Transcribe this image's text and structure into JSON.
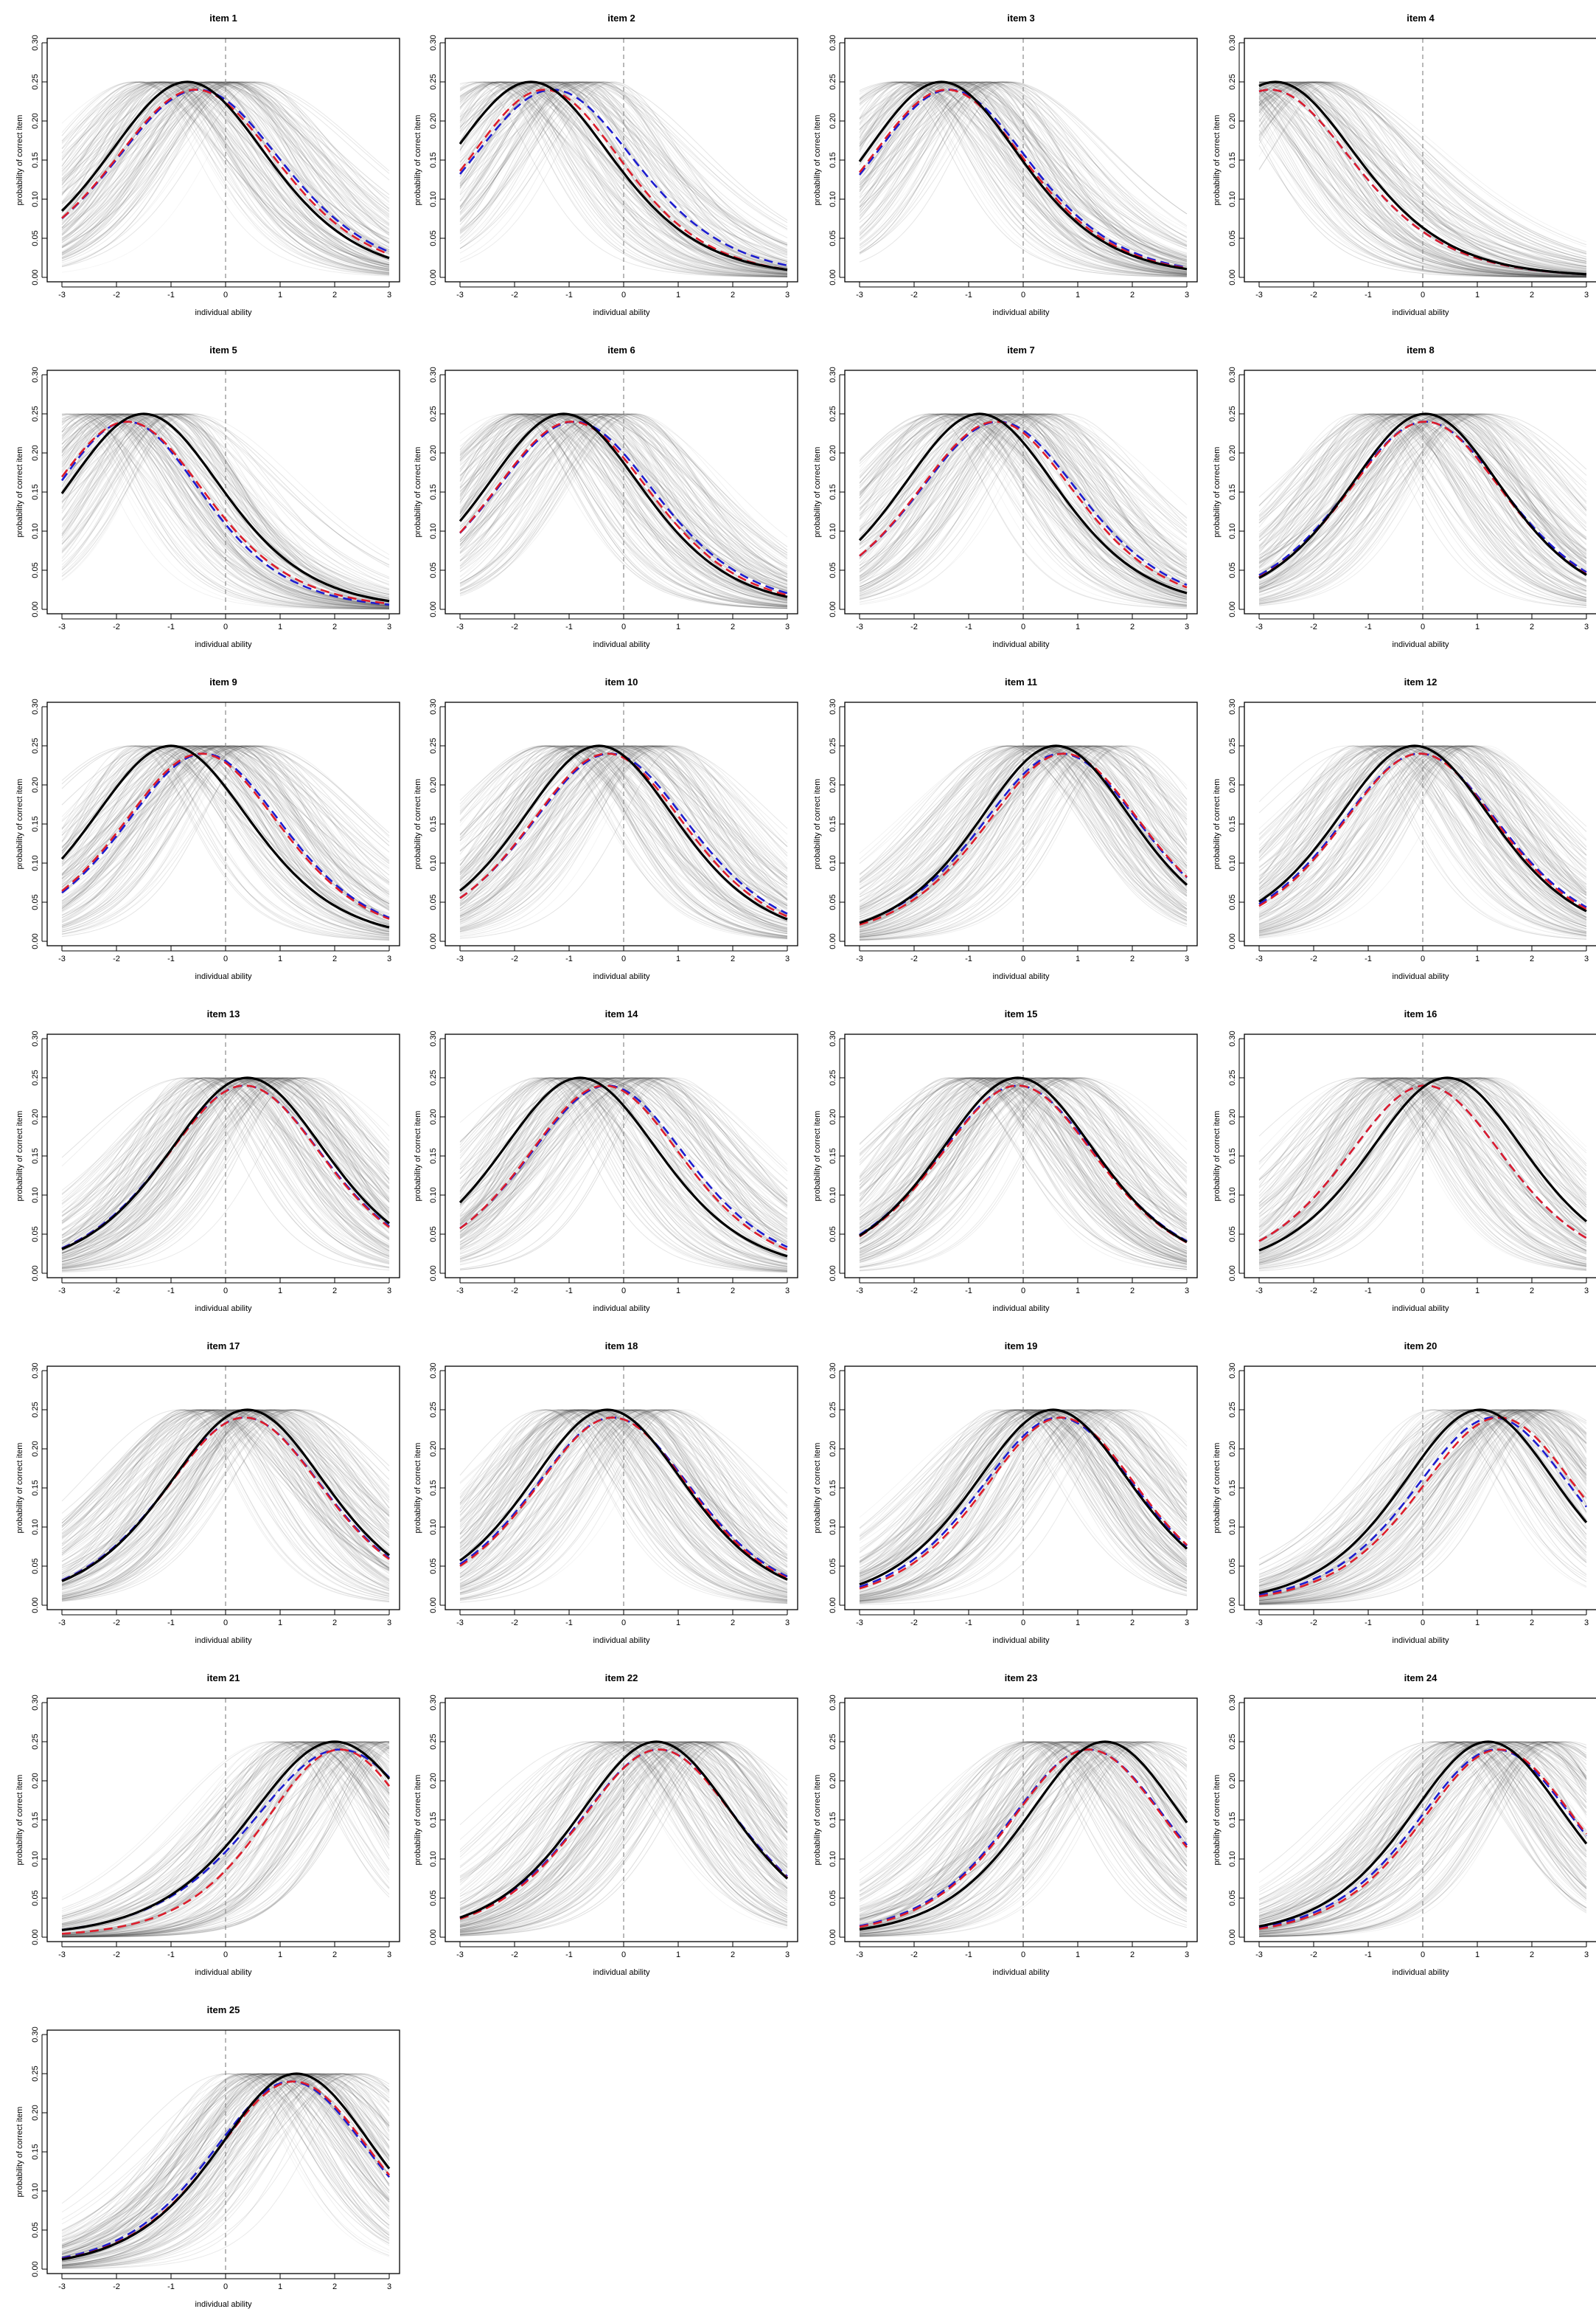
{
  "figure": {
    "xlabel": "individual ability",
    "ylabel": "probability of correct item",
    "xticks": [
      "-3",
      "-2",
      "-1",
      "0",
      "1",
      "2",
      "3"
    ],
    "yticks": [
      "0.00",
      "0.05",
      "0.10",
      "0.15",
      "0.20",
      "0.25",
      "0.30"
    ]
  },
  "chart_data": [
    {
      "type": "line",
      "title": "item 1",
      "xlabel": "individual ability",
      "ylabel": "probability of correct item",
      "xlim": [
        -3,
        3
      ],
      "ylim": [
        0,
        0.3
      ],
      "reference_line_x": 0,
      "series": [
        {
          "name": "black",
          "peak_x": -0.7,
          "value_at_x-3": 0.095,
          "value_at_x3": 0.02
        },
        {
          "name": "red",
          "peak_x": -0.55,
          "value_at_x-3": 0.08,
          "value_at_x3": 0.03
        },
        {
          "name": "blue",
          "peak_x": -0.5,
          "value_at_x-3": 0.085,
          "value_at_x3": 0.03
        }
      ]
    },
    {
      "type": "line",
      "title": "item 2",
      "xlabel": "individual ability",
      "ylabel": "probability of correct item",
      "xlim": [
        -3,
        3
      ],
      "ylim": [
        0,
        0.3
      ],
      "reference_line_x": 0,
      "series": [
        {
          "name": "black",
          "peak_x": -1.7,
          "value_at_x-3": 0.17,
          "value_at_x3": 0.01
        },
        {
          "name": "red",
          "peak_x": -1.45,
          "value_at_x-3": 0.13,
          "value_at_x3": 0.015
        },
        {
          "name": "blue",
          "peak_x": -1.3,
          "value_at_x-3": 0.14,
          "value_at_x3": 0.015
        }
      ]
    },
    {
      "type": "line",
      "title": "item 3",
      "xlabel": "individual ability",
      "ylabel": "probability of correct item",
      "xlim": [
        -3,
        3
      ],
      "ylim": [
        0,
        0.3
      ],
      "reference_line_x": 0,
      "series": [
        {
          "name": "black",
          "peak_x": -1.5,
          "value_at_x-3": 0.15,
          "value_at_x3": 0.01
        },
        {
          "name": "red",
          "peak_x": -1.4,
          "value_at_x-3": 0.14,
          "value_at_x3": 0.012
        },
        {
          "name": "blue",
          "peak_x": -1.35,
          "value_at_x-3": 0.14,
          "value_at_x3": 0.012
        }
      ]
    },
    {
      "type": "line",
      "title": "item 4",
      "xlabel": "individual ability",
      "ylabel": "probability of correct item",
      "xlim": [
        -3,
        3
      ],
      "ylim": [
        0,
        0.3
      ],
      "reference_line_x": 0,
      "series": [
        {
          "name": "black",
          "peak_x": -2.7,
          "value_at_x-3": 0.245,
          "value_at_x3": 0.004
        },
        {
          "name": "red",
          "peak_x": -2.8,
          "value_at_x-3": 0.24,
          "value_at_x3": 0.004
        },
        {
          "name": "blue",
          "peak_x": -2.8,
          "value_at_x-3": 0.235,
          "value_at_x3": 0.004
        }
      ]
    },
    {
      "type": "line",
      "title": "item 5",
      "xlabel": "individual ability",
      "ylabel": "probability of correct item",
      "xlim": [
        -3,
        3
      ],
      "ylim": [
        0,
        0.3
      ],
      "reference_line_x": 0,
      "series": [
        {
          "name": "black",
          "peak_x": -1.5,
          "value_at_x-3": 0.15,
          "value_at_x3": 0.01
        },
        {
          "name": "red",
          "peak_x": -1.8,
          "value_at_x-3": 0.17,
          "value_at_x3": 0.01
        },
        {
          "name": "blue",
          "peak_x": -1.8,
          "value_at_x-3": 0.16,
          "value_at_x3": 0.01
        }
      ]
    },
    {
      "type": "line",
      "title": "item 6",
      "xlabel": "individual ability",
      "ylabel": "probability of correct item",
      "xlim": [
        -3,
        3
      ],
      "ylim": [
        0,
        0.3
      ],
      "reference_line_x": 0,
      "series": [
        {
          "name": "black",
          "peak_x": -1.1,
          "value_at_x-3": 0.115,
          "value_at_x3": 0.015
        },
        {
          "name": "red",
          "peak_x": -0.95,
          "value_at_x-3": 0.1,
          "value_at_x3": 0.02
        },
        {
          "name": "blue",
          "peak_x": -0.9,
          "value_at_x-3": 0.105,
          "value_at_x3": 0.02
        }
      ]
    },
    {
      "type": "line",
      "title": "item 7",
      "xlabel": "individual ability",
      "ylabel": "probability of correct item",
      "xlim": [
        -3,
        3
      ],
      "ylim": [
        0,
        0.3
      ],
      "reference_line_x": 0,
      "series": [
        {
          "name": "black",
          "peak_x": -0.8,
          "value_at_x-3": 0.09,
          "value_at_x3": 0.02
        },
        {
          "name": "red",
          "peak_x": -0.5,
          "value_at_x-3": 0.07,
          "value_at_x3": 0.03
        },
        {
          "name": "blue",
          "peak_x": -0.45,
          "value_at_x-3": 0.075,
          "value_at_x3": 0.03
        }
      ]
    },
    {
      "type": "line",
      "title": "item 8",
      "xlabel": "individual ability",
      "ylabel": "probability of correct item",
      "xlim": [
        -3,
        3
      ],
      "ylim": [
        0,
        0.3
      ],
      "reference_line_x": 0,
      "series": [
        {
          "name": "black",
          "peak_x": 0.05,
          "value_at_x-3": 0.035,
          "value_at_x3": 0.05
        },
        {
          "name": "red",
          "peak_x": 0.05,
          "value_at_x-3": 0.04,
          "value_at_x3": 0.05
        },
        {
          "name": "blue",
          "peak_x": 0.05,
          "value_at_x-3": 0.045,
          "value_at_x3": 0.05
        }
      ]
    },
    {
      "type": "line",
      "title": "item 9",
      "xlabel": "individual ability",
      "ylabel": "probability of correct item",
      "xlim": [
        -3,
        3
      ],
      "ylim": [
        0,
        0.3
      ],
      "reference_line_x": 0,
      "series": [
        {
          "name": "black",
          "peak_x": -1.0,
          "value_at_x-3": 0.105,
          "value_at_x3": 0.018
        },
        {
          "name": "red",
          "peak_x": -0.45,
          "value_at_x-3": 0.06,
          "value_at_x3": 0.035
        },
        {
          "name": "blue",
          "peak_x": -0.4,
          "value_at_x-3": 0.06,
          "value_at_x3": 0.035
        }
      ]
    },
    {
      "type": "line",
      "title": "item 10",
      "xlabel": "individual ability",
      "ylabel": "probability of correct item",
      "xlim": [
        -3,
        3
      ],
      "ylim": [
        0,
        0.3
      ],
      "reference_line_x": 0,
      "series": [
        {
          "name": "black",
          "peak_x": -0.45,
          "value_at_x-3": 0.07,
          "value_at_x3": 0.025
        },
        {
          "name": "red",
          "peak_x": -0.3,
          "value_at_x-3": 0.055,
          "value_at_x3": 0.035
        },
        {
          "name": "blue",
          "peak_x": -0.25,
          "value_at_x-3": 0.06,
          "value_at_x3": 0.035
        }
      ]
    },
    {
      "type": "line",
      "title": "item 11",
      "xlabel": "individual ability",
      "ylabel": "probability of correct item",
      "xlim": [
        -3,
        3
      ],
      "ylim": [
        0,
        0.3
      ],
      "reference_line_x": 0,
      "series": [
        {
          "name": "black",
          "peak_x": 0.6,
          "value_at_x-3": 0.022,
          "value_at_x3": 0.075
        },
        {
          "name": "red",
          "peak_x": 0.75,
          "value_at_x-3": 0.018,
          "value_at_x3": 0.095
        },
        {
          "name": "blue",
          "peak_x": 0.7,
          "value_at_x-3": 0.022,
          "value_at_x3": 0.09
        }
      ]
    },
    {
      "type": "line",
      "title": "item 12",
      "xlabel": "individual ability",
      "ylabel": "probability of correct item",
      "xlim": [
        -3,
        3
      ],
      "ylim": [
        0,
        0.3
      ],
      "reference_line_x": 0,
      "series": [
        {
          "name": "black",
          "peak_x": -0.15,
          "value_at_x-3": 0.055,
          "value_at_x3": 0.035
        },
        {
          "name": "red",
          "peak_x": -0.05,
          "value_at_x-3": 0.045,
          "value_at_x3": 0.045
        },
        {
          "name": "blue",
          "peak_x": -0.05,
          "value_at_x-3": 0.05,
          "value_at_x3": 0.045
        }
      ]
    },
    {
      "type": "line",
      "title": "item 13",
      "xlabel": "individual ability",
      "ylabel": "probability of correct item",
      "xlim": [
        -3,
        3
      ],
      "ylim": [
        0,
        0.3
      ],
      "reference_line_x": 0,
      "series": [
        {
          "name": "black",
          "peak_x": 0.4,
          "value_at_x-3": 0.03,
          "value_at_x3": 0.065
        },
        {
          "name": "red",
          "peak_x": 0.35,
          "value_at_x-3": 0.032,
          "value_at_x3": 0.062
        },
        {
          "name": "blue",
          "peak_x": 0.35,
          "value_at_x-3": 0.034,
          "value_at_x3": 0.062
        }
      ]
    },
    {
      "type": "line",
      "title": "item 14",
      "xlabel": "individual ability",
      "ylabel": "probability of correct item",
      "xlim": [
        -3,
        3
      ],
      "ylim": [
        0,
        0.3
      ],
      "reference_line_x": 0,
      "series": [
        {
          "name": "black",
          "peak_x": -0.8,
          "value_at_x-3": 0.09,
          "value_at_x3": 0.022
        },
        {
          "name": "red",
          "peak_x": -0.35,
          "value_at_x-3": 0.055,
          "value_at_x3": 0.035
        },
        {
          "name": "blue",
          "peak_x": -0.3,
          "value_at_x-3": 0.06,
          "value_at_x3": 0.035
        }
      ]
    },
    {
      "type": "line",
      "title": "item 15",
      "xlabel": "individual ability",
      "ylabel": "probability of correct item",
      "xlim": [
        -3,
        3
      ],
      "ylim": [
        0,
        0.3
      ],
      "reference_line_x": 0,
      "series": [
        {
          "name": "black",
          "peak_x": -0.1,
          "value_at_x-3": 0.048,
          "value_at_x3": 0.04
        },
        {
          "name": "red",
          "peak_x": -0.1,
          "value_at_x-3": 0.05,
          "value_at_x3": 0.04
        },
        {
          "name": "blue",
          "peak_x": -0.1,
          "value_at_x-3": 0.055,
          "value_at_x3": 0.04
        }
      ]
    },
    {
      "type": "line",
      "title": "item 16",
      "xlabel": "individual ability",
      "ylabel": "probability of correct item",
      "xlim": [
        -3,
        3
      ],
      "ylim": [
        0,
        0.3
      ],
      "reference_line_x": 0,
      "series": [
        {
          "name": "black",
          "peak_x": 0.45,
          "value_at_x-3": 0.027,
          "value_at_x3": 0.07
        },
        {
          "name": "red",
          "peak_x": 0.05,
          "value_at_x-3": 0.04,
          "value_at_x3": 0.05
        },
        {
          "name": "blue",
          "peak_x": 0.05,
          "value_at_x-3": 0.04,
          "value_at_x3": 0.05
        }
      ]
    },
    {
      "type": "line",
      "title": "item 17",
      "xlabel": "individual ability",
      "ylabel": "probability of correct item",
      "xlim": [
        -3,
        3
      ],
      "ylim": [
        0,
        0.3
      ],
      "reference_line_x": 0,
      "series": [
        {
          "name": "black",
          "peak_x": 0.4,
          "value_at_x-3": 0.03,
          "value_at_x3": 0.065
        },
        {
          "name": "red",
          "peak_x": 0.35,
          "value_at_x-3": 0.032,
          "value_at_x3": 0.062
        },
        {
          "name": "blue",
          "peak_x": 0.35,
          "value_at_x-3": 0.034,
          "value_at_x3": 0.062
        }
      ]
    },
    {
      "type": "line",
      "title": "item 18",
      "xlabel": "individual ability",
      "ylabel": "probability of correct item",
      "xlim": [
        -3,
        3
      ],
      "ylim": [
        0,
        0.3
      ],
      "reference_line_x": 0,
      "series": [
        {
          "name": "black",
          "peak_x": -0.3,
          "value_at_x-3": 0.058,
          "value_at_x3": 0.032
        },
        {
          "name": "red",
          "peak_x": -0.2,
          "value_at_x-3": 0.05,
          "value_at_x3": 0.038
        },
        {
          "name": "blue",
          "peak_x": -0.2,
          "value_at_x-3": 0.055,
          "value_at_x3": 0.038
        }
      ]
    },
    {
      "type": "line",
      "title": "item 19",
      "xlabel": "individual ability",
      "ylabel": "probability of correct item",
      "xlim": [
        -3,
        3
      ],
      "ylim": [
        0,
        0.3
      ],
      "reference_line_x": 0,
      "series": [
        {
          "name": "black",
          "peak_x": 0.55,
          "value_at_x-3": 0.028,
          "value_at_x3": 0.07
        },
        {
          "name": "red",
          "peak_x": 0.7,
          "value_at_x-3": 0.02,
          "value_at_x3": 0.085
        },
        {
          "name": "blue",
          "peak_x": 0.65,
          "value_at_x-3": 0.024,
          "value_at_x3": 0.08
        }
      ]
    },
    {
      "type": "line",
      "title": "item 20",
      "xlabel": "individual ability",
      "ylabel": "probability of correct item",
      "xlim": [
        -3,
        3
      ],
      "ylim": [
        0,
        0.3
      ],
      "reference_line_x": 0,
      "series": [
        {
          "name": "black",
          "peak_x": 1.05,
          "value_at_x-3": 0.014,
          "value_at_x3": 0.11
        },
        {
          "name": "red",
          "peak_x": 1.4,
          "value_at_x-3": 0.01,
          "value_at_x3": 0.145
        },
        {
          "name": "blue",
          "peak_x": 1.3,
          "value_at_x-3": 0.012,
          "value_at_x3": 0.135
        }
      ]
    },
    {
      "type": "line",
      "title": "item 21",
      "xlabel": "individual ability",
      "ylabel": "probability of correct item",
      "xlim": [
        -3,
        3
      ],
      "ylim": [
        0,
        0.3
      ],
      "reference_line_x": 0,
      "series": [
        {
          "name": "black",
          "peak_x": 2.0,
          "value_at_x-3": 0.006,
          "value_at_x3": 0.21
        },
        {
          "name": "red",
          "peak_x": 2.1,
          "value_at_x-3": 0.005,
          "value_at_x3": 0.2
        },
        {
          "name": "blue",
          "peak_x": 2.1,
          "value_at_x-3": 0.006,
          "value_at_x3": 0.22
        }
      ]
    },
    {
      "type": "line",
      "title": "item 22",
      "xlabel": "individual ability",
      "ylabel": "probability of correct item",
      "xlim": [
        -3,
        3
      ],
      "ylim": [
        0,
        0.3
      ],
      "reference_line_x": 0,
      "series": [
        {
          "name": "black",
          "peak_x": 0.6,
          "value_at_x-3": 0.025,
          "value_at_x3": 0.075
        },
        {
          "name": "red",
          "peak_x": 0.65,
          "value_at_x-3": 0.024,
          "value_at_x3": 0.08
        },
        {
          "name": "blue",
          "peak_x": 0.65,
          "value_at_x-3": 0.026,
          "value_at_x3": 0.08
        }
      ]
    },
    {
      "type": "line",
      "title": "item 23",
      "xlabel": "individual ability",
      "ylabel": "probability of correct item",
      "xlim": [
        -3,
        3
      ],
      "ylim": [
        0,
        0.3
      ],
      "reference_line_x": 0,
      "series": [
        {
          "name": "black",
          "peak_x": 1.5,
          "value_at_x-3": 0.009,
          "value_at_x3": 0.15
        },
        {
          "name": "red",
          "peak_x": 1.2,
          "value_at_x-3": 0.012,
          "value_at_x3": 0.125
        },
        {
          "name": "blue",
          "peak_x": 1.2,
          "value_at_x-3": 0.014,
          "value_at_x3": 0.125
        }
      ]
    },
    {
      "type": "line",
      "title": "item 24",
      "xlabel": "individual ability",
      "ylabel": "probability of correct item",
      "xlim": [
        -3,
        3
      ],
      "ylim": [
        0,
        0.3
      ],
      "reference_line_x": 0,
      "series": [
        {
          "name": "black",
          "peak_x": 1.2,
          "value_at_x-3": 0.012,
          "value_at_x3": 0.125
        },
        {
          "name": "red",
          "peak_x": 1.4,
          "value_at_x-3": 0.009,
          "value_at_x3": 0.145
        },
        {
          "name": "blue",
          "peak_x": 1.35,
          "value_at_x-3": 0.011,
          "value_at_x3": 0.14
        }
      ]
    },
    {
      "type": "line",
      "title": "item 25",
      "xlabel": "individual ability",
      "ylabel": "probability of correct item",
      "xlim": [
        -3,
        3
      ],
      "ylim": [
        0,
        0.3
      ],
      "reference_line_x": 0,
      "series": [
        {
          "name": "black",
          "peak_x": 1.3,
          "value_at_x-3": 0.012,
          "value_at_x3": 0.13
        },
        {
          "name": "red",
          "peak_x": 1.25,
          "value_at_x-3": 0.012,
          "value_at_x3": 0.13
        },
        {
          "name": "blue",
          "peak_x": 1.2,
          "value_at_x-3": 0.014,
          "value_at_x3": 0.125
        }
      ]
    }
  ]
}
